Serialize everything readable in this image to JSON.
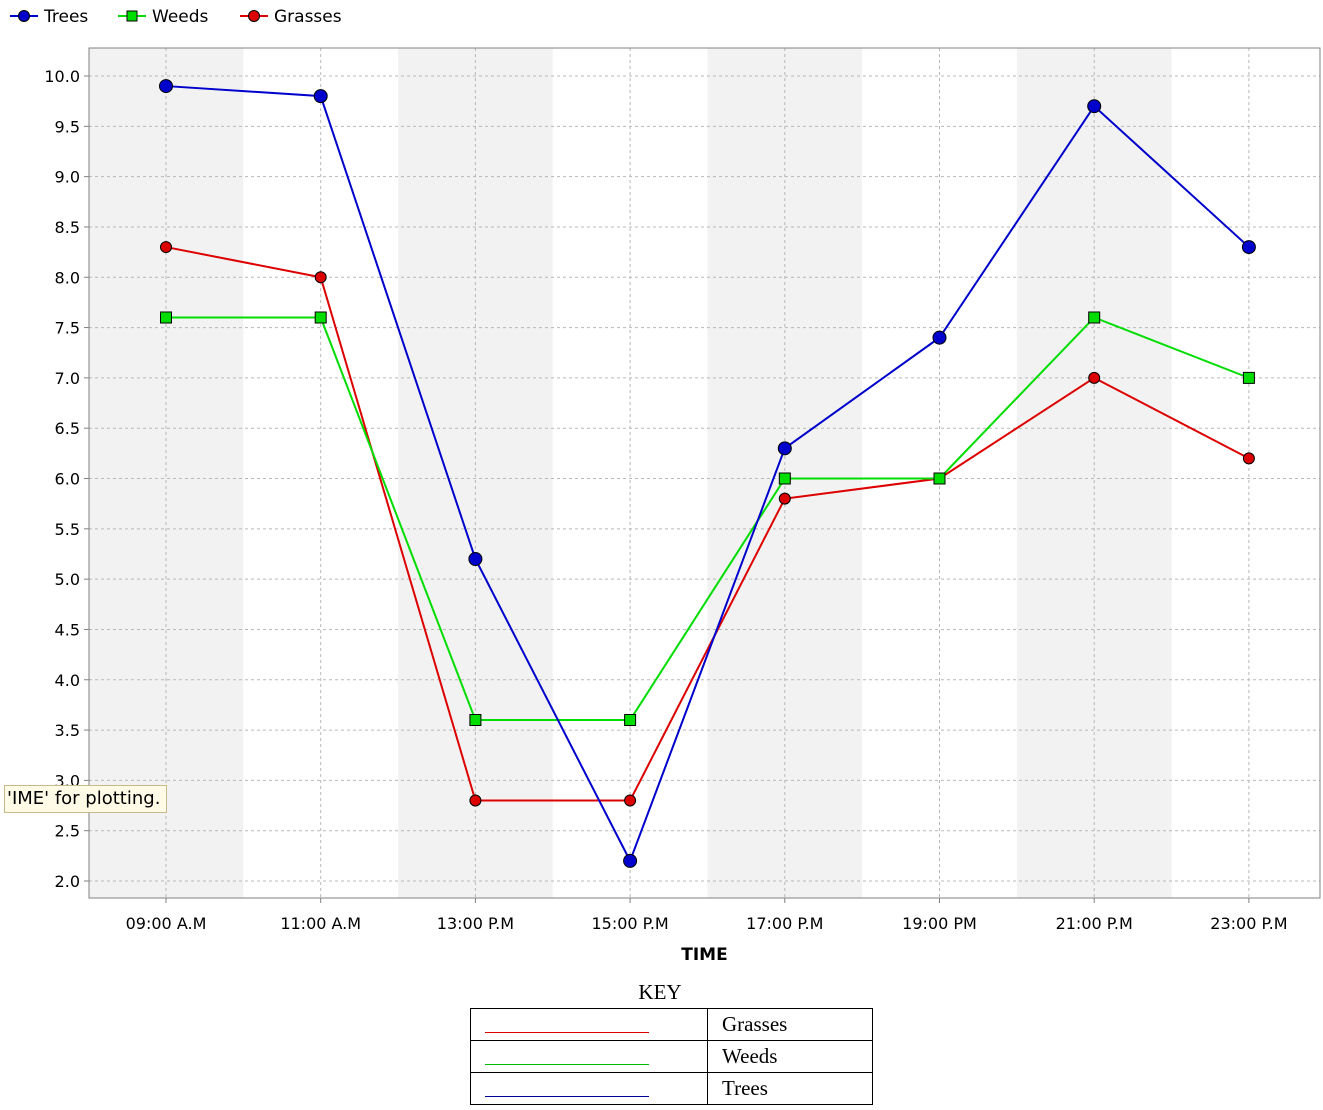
{
  "chart_data": {
    "type": "line",
    "title": "",
    "xlabel": "TIME",
    "ylabel": "",
    "categories": [
      "09:00 A.M",
      "11:00 A.M",
      "13:00 P.M",
      "15:00 P.M",
      "17:00 P.M",
      "19:00 PM",
      "21:00 P.M",
      "23:00 P.M"
    ],
    "ylim": [
      2.0,
      10.0
    ],
    "yticks": [
      "2.0",
      "2.5",
      "3.0",
      "3.5",
      "4.0",
      "4.5",
      "5.0",
      "5.5",
      "6.0",
      "6.5",
      "7.0",
      "7.5",
      "8.0",
      "8.5",
      "9.0",
      "9.5",
      "10.0"
    ],
    "grid": true,
    "legend_position": "top-left",
    "series": [
      {
        "name": "Trees",
        "color": "#0000cc",
        "marker": "circle",
        "values": [
          9.9,
          9.8,
          5.2,
          2.2,
          6.3,
          7.4,
          9.7,
          8.3
        ]
      },
      {
        "name": "Weeds",
        "color": "#00dd00",
        "marker": "square",
        "values": [
          7.6,
          7.6,
          3.6,
          3.6,
          6.0,
          6.0,
          7.6,
          7.0
        ]
      },
      {
        "name": "Grasses",
        "color": "#dd0000",
        "marker": "circle",
        "values": [
          8.3,
          8.0,
          2.8,
          2.8,
          5.8,
          6.0,
          7.0,
          6.2
        ]
      }
    ]
  },
  "tooltip": {
    "text": "'IME' for plotting."
  },
  "key": {
    "title": "KEY",
    "rows": [
      {
        "label": "Grasses",
        "color": "#dd0000"
      },
      {
        "label": "Weeds",
        "color": "#00bb00"
      },
      {
        "label": "Trees",
        "color": "#000099"
      }
    ]
  }
}
